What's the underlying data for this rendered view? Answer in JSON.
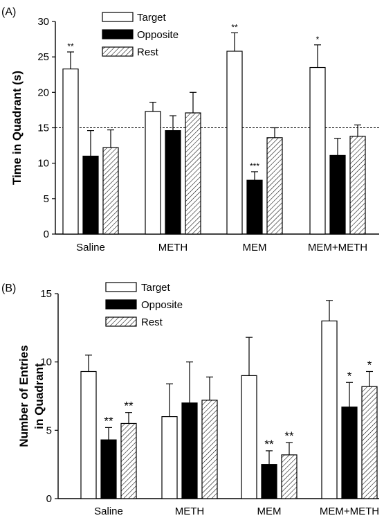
{
  "colors": {
    "target": "#ffffff",
    "opposite": "#000000",
    "rest_hatch": "#000000",
    "axis": "#000000"
  },
  "chart_data": [
    {
      "type": "bar",
      "panel_label": "(A)",
      "ylabel": "Time in Quadrant (s)",
      "ylim": [
        0,
        30
      ],
      "yticks": [
        0,
        5,
        10,
        15,
        20,
        25,
        30
      ],
      "categories": [
        "Saline",
        "METH",
        "MEM",
        "MEM+METH"
      ],
      "reference_line": 15,
      "legend_placement": "top-center",
      "series": [
        {
          "name": "Target",
          "style": "open",
          "values": [
            23.3,
            17.3,
            25.8,
            23.5
          ],
          "errors": [
            2.4,
            1.3,
            2.6,
            3.2
          ],
          "significance": [
            "**",
            "",
            "**",
            "*"
          ]
        },
        {
          "name": "Opposite",
          "style": "filled",
          "values": [
            11.0,
            14.6,
            7.6,
            11.1
          ],
          "errors": [
            3.6,
            2.1,
            1.2,
            2.4
          ],
          "significance": [
            "",
            "",
            "***",
            ""
          ]
        },
        {
          "name": "Rest",
          "style": "hatched",
          "values": [
            12.2,
            17.1,
            13.6,
            13.8
          ],
          "errors": [
            2.5,
            2.9,
            1.4,
            1.6
          ],
          "significance": [
            "",
            "",
            "",
            ""
          ]
        }
      ]
    },
    {
      "type": "bar",
      "panel_label": "(B)",
      "ylabel": [
        "Number of Entries",
        "in Quadrant"
      ],
      "ylim": [
        0,
        15
      ],
      "yticks": [
        0,
        5,
        10,
        15
      ],
      "categories": [
        "Saline",
        "METH",
        "MEM",
        "MEM+METH"
      ],
      "legend_placement": "top-center",
      "series": [
        {
          "name": "Target",
          "style": "open",
          "values": [
            9.3,
            6.0,
            9.0,
            13.0
          ],
          "errors": [
            1.2,
            2.4,
            2.8,
            1.5
          ],
          "significance": [
            "",
            "",
            "",
            ""
          ]
        },
        {
          "name": "Opposite",
          "style": "filled",
          "values": [
            4.3,
            7.0,
            2.5,
            6.7
          ],
          "errors": [
            0.9,
            3.0,
            1.0,
            1.8
          ],
          "significance": [
            "**",
            "",
            "**",
            "*"
          ]
        },
        {
          "name": "Rest",
          "style": "hatched",
          "values": [
            5.5,
            7.2,
            3.2,
            8.2
          ],
          "errors": [
            0.8,
            1.7,
            0.9,
            1.1
          ],
          "significance": [
            "**",
            "",
            "**",
            "*"
          ]
        }
      ]
    }
  ]
}
